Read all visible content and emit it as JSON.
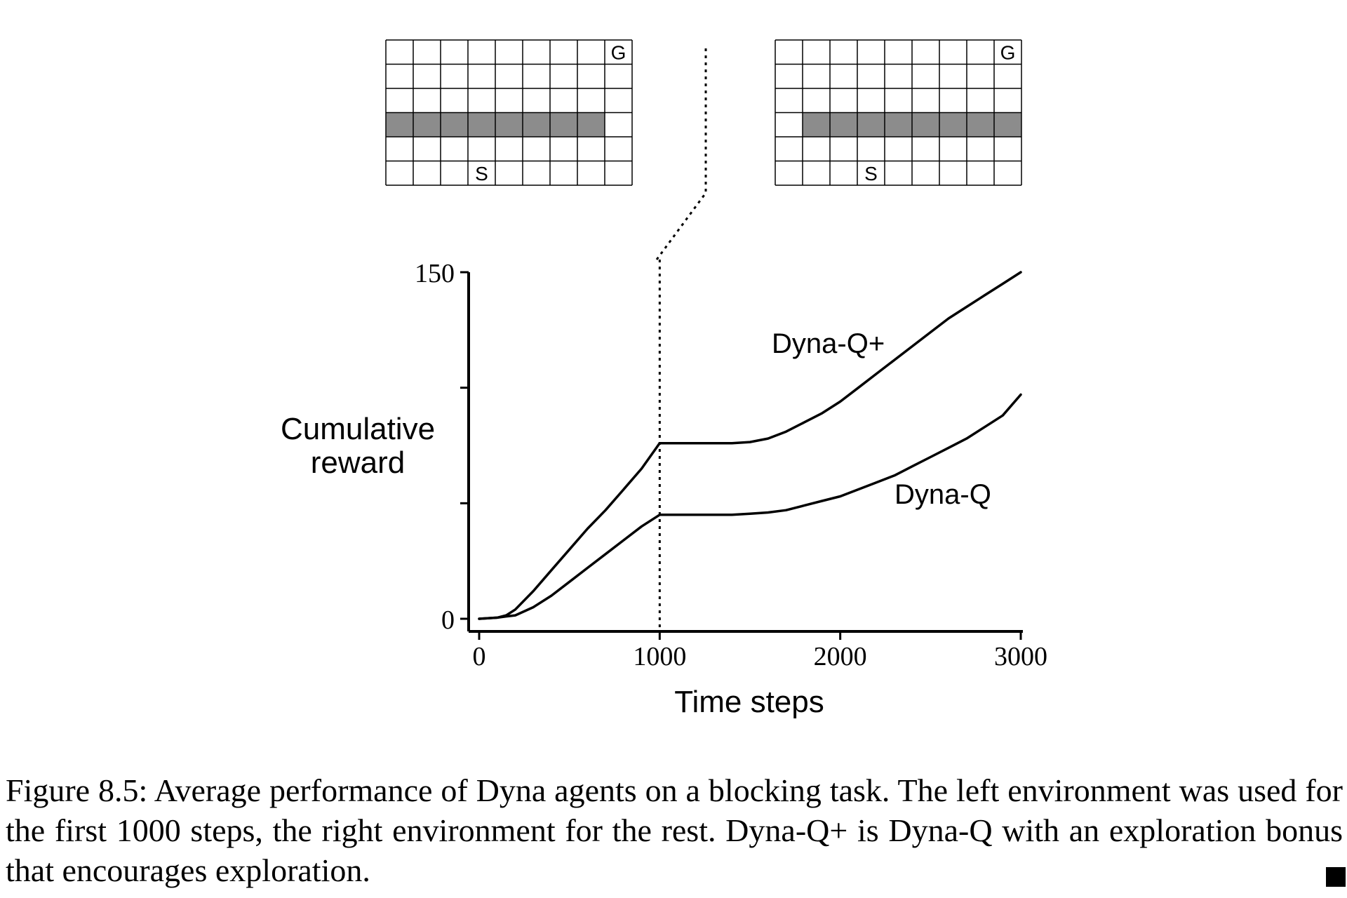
{
  "chart_data": {
    "type": "line",
    "xlabel": "Time steps",
    "ylabel": [
      "Cumulative",
      "reward"
    ],
    "xlim": [
      0,
      3000
    ],
    "ylim": [
      0,
      150
    ],
    "x_ticks": [
      0,
      1000,
      2000,
      3000
    ],
    "x_tick_labels": [
      "0",
      "1000",
      "2000",
      "3000"
    ],
    "y_ticks": [
      0,
      50,
      100,
      150
    ],
    "y_tick_labels": [
      "0",
      "",
      "",
      "150"
    ],
    "switch_step": 1000,
    "series": [
      {
        "name": "Dyna-Q+",
        "x": [
          0,
          100,
          150,
          200,
          300,
          400,
          500,
          600,
          700,
          800,
          900,
          1000,
          1100,
          1200,
          1300,
          1400,
          1500,
          1600,
          1700,
          1800,
          1900,
          2000,
          2100,
          2200,
          2300,
          2400,
          2500,
          2600,
          2700,
          2800,
          2900,
          3000
        ],
        "y": [
          0,
          0.5,
          1.5,
          4,
          12,
          21,
          30,
          39,
          47,
          56,
          65,
          76,
          76,
          76,
          76,
          76,
          76.5,
          78,
          81,
          85,
          89,
          94,
          100,
          106,
          112,
          118,
          124,
          130,
          135,
          140,
          145,
          150
        ]
      },
      {
        "name": "Dyna-Q",
        "x": [
          0,
          100,
          150,
          200,
          300,
          400,
          500,
          600,
          700,
          800,
          900,
          1000,
          1100,
          1200,
          1300,
          1400,
          1500,
          1600,
          1700,
          1800,
          1900,
          2000,
          2100,
          2200,
          2300,
          2400,
          2500,
          2600,
          2700,
          2800,
          2900,
          3000
        ],
        "y": [
          0,
          0.5,
          1,
          1.5,
          5,
          10,
          16,
          22,
          28,
          34,
          40,
          45,
          45,
          45,
          45,
          45,
          45.5,
          46,
          47,
          49,
          51,
          53,
          56,
          59,
          62,
          66,
          70,
          74,
          78,
          83,
          88,
          97
        ]
      }
    ],
    "annotations": [
      {
        "text": "Dyna-Q+",
        "series": "Dyna-Q+"
      },
      {
        "text": "Dyna-Q",
        "series": "Dyna-Q"
      }
    ]
  },
  "gridworlds": [
    {
      "cols": 9,
      "rows": 6,
      "goal": {
        "row": 0,
        "col": 8,
        "label": "G"
      },
      "start": {
        "row": 5,
        "col": 3,
        "label": "S"
      },
      "wall": {
        "row": 3,
        "from_col": 0,
        "to_col": 7
      }
    },
    {
      "cols": 9,
      "rows": 6,
      "goal": {
        "row": 0,
        "col": 8,
        "label": "G"
      },
      "start": {
        "row": 5,
        "col": 3,
        "label": "S"
      },
      "wall": {
        "row": 3,
        "from_col": 1,
        "to_col": 8
      }
    }
  ],
  "caption": "Figure 8.5: Average performance of Dyna agents on a blocking task. The left environment was used for the first 1000 steps, the right environment for the rest. Dyna-Q+ is Dyna-Q with an exploration bonus that encourages exploration.",
  "colors": {
    "line": "#000000",
    "wall": "#8c8c8c",
    "grid": "#000000"
  }
}
